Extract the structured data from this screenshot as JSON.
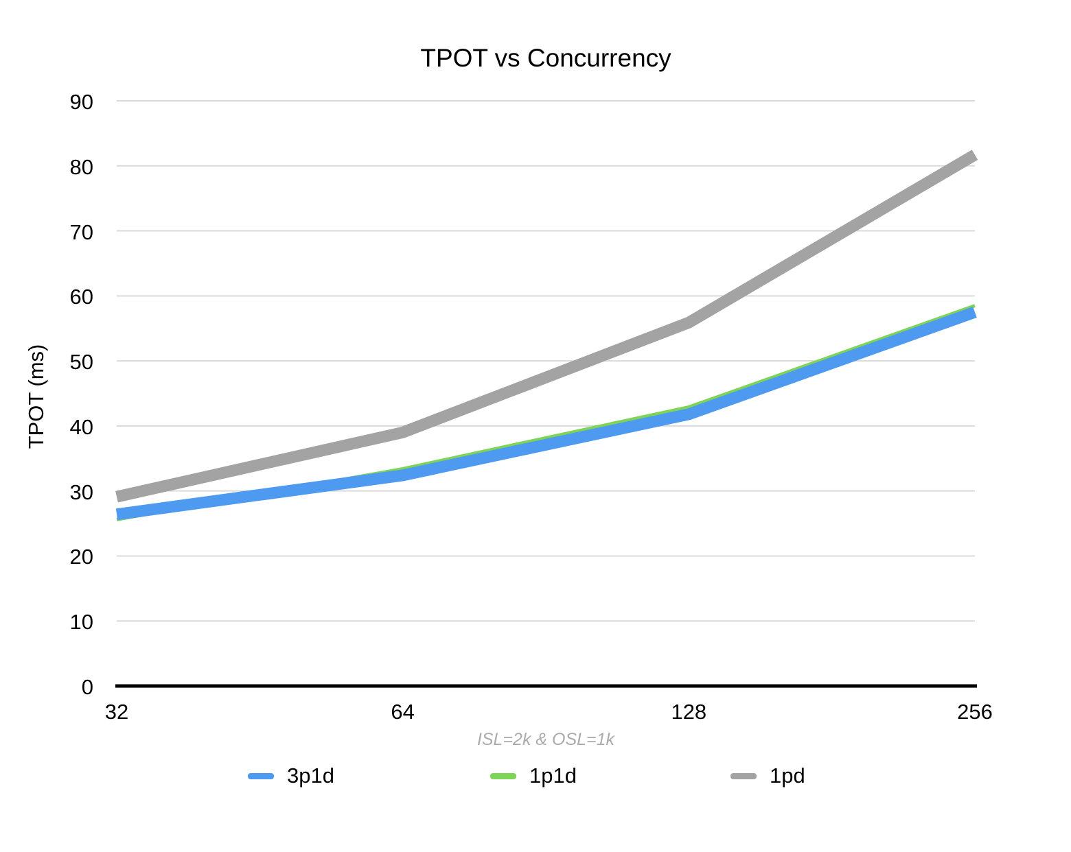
{
  "chart_data": {
    "type": "line",
    "title": "TPOT vs Concurrency",
    "ylabel": "TPOT (ms)",
    "xlabel": "",
    "caption": "ISL=2k & OSL=1k",
    "categories": [
      "32",
      "64",
      "128",
      "256"
    ],
    "series": [
      {
        "name": "1p1d",
        "color": "#7ED457",
        "line_width": 5,
        "values": [
          25.6,
          33.4,
          42.9,
          58.5
        ]
      },
      {
        "name": "3p1d",
        "color": "#4D9AF0",
        "line_width": 17,
        "values": [
          26.4,
          32.4,
          41.8,
          57.5
        ]
      },
      {
        "name": "1pd",
        "color": "#A3A3A3",
        "line_width": 17,
        "values": [
          29.1,
          39.0,
          55.9,
          81.7
        ]
      }
    ],
    "legend_order": [
      "3p1d",
      "1p1d",
      "1pd"
    ],
    "yticks": [
      0,
      10,
      20,
      30,
      40,
      50,
      60,
      70,
      80,
      90
    ],
    "ylim": [
      0,
      90
    ],
    "grid": true,
    "gridline_color": "#DADADA",
    "axis_color": "#000000",
    "legend_position": "bottom"
  }
}
